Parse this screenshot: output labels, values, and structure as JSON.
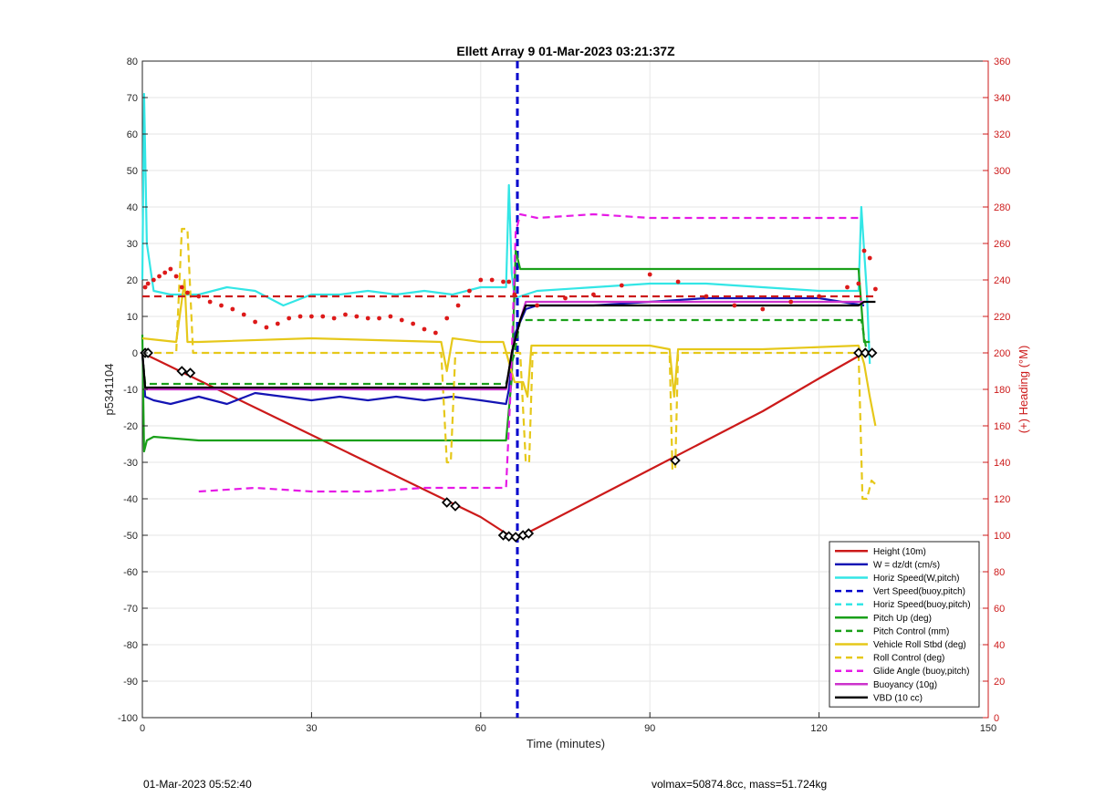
{
  "chart_data": {
    "type": "line",
    "title": "Ellett Array 9 01-Mar-2023 03:21:37Z",
    "xlabel": "Time (minutes)",
    "ylabel": "p5341104",
    "y2label": "(+) Heading (°M)",
    "xlim": [
      0,
      150
    ],
    "ylim": [
      -100,
      80
    ],
    "y2lim": [
      0,
      360
    ],
    "xticks": [
      "0",
      "30",
      "60",
      "90",
      "120",
      "150"
    ],
    "yticks": [
      "80",
      "70",
      "60",
      "50",
      "40",
      "30",
      "20",
      "10",
      "0",
      "-10",
      "-20",
      "-30",
      "-40",
      "-50",
      "-60",
      "-70",
      "-80",
      "-90",
      "-100"
    ],
    "y2ticks": [
      "360",
      "340",
      "320",
      "300",
      "280",
      "260",
      "240",
      "220",
      "200",
      "180",
      "160",
      "140",
      "120",
      "100",
      "80",
      "60",
      "40",
      "20",
      "0"
    ],
    "grid": true,
    "legend_position": "bottom-right",
    "colors": {
      "height": "#cc1a1a",
      "w": "#1414b4",
      "horiz": "#33e6e6",
      "vert_dashed": "#0000cc",
      "pitch": "#1aa01a",
      "roll": "#e6c81a",
      "glide": "#e61ae6",
      "buoy": "#cc33cc",
      "vbd": "#000000",
      "heading": "#dd1a1a"
    },
    "series": [
      {
        "name": "Height (10m)",
        "axis": "left",
        "style": "solid",
        "color": "#cc1a1a",
        "x": [
          0,
          10,
          20,
          30,
          40,
          50,
          60,
          65,
          67,
          70,
          80,
          90,
          100,
          110,
          120,
          128
        ],
        "y": [
          0,
          -7.5,
          -15,
          -22.5,
          -30,
          -37.5,
          -45,
          -50,
          -50.3,
          -48,
          -40,
          -32,
          -24,
          -16,
          -7,
          0
        ]
      },
      {
        "name": "W = dz/dt (cm/s)",
        "axis": "left",
        "style": "solid",
        "color": "#1414b4",
        "x": [
          0,
          0.5,
          2,
          5,
          10,
          15,
          20,
          25,
          30,
          35,
          40,
          45,
          50,
          55,
          60,
          64.5,
          65,
          66,
          68,
          70,
          80,
          90,
          100,
          110,
          120,
          128
        ],
        "y": [
          0,
          -12,
          -13,
          -14,
          -12,
          -14,
          -11,
          -12,
          -13,
          -12,
          -13,
          -12,
          -13,
          -12,
          -13,
          -14,
          -10,
          5,
          12,
          13,
          13,
          14,
          15,
          15,
          15,
          13
        ]
      },
      {
        "name": "Horiz Speed(W,pitch)",
        "axis": "left",
        "style": "solid",
        "color": "#33e6e6",
        "x": [
          0,
          0.3,
          0.8,
          2,
          5,
          10,
          15,
          20,
          25,
          30,
          35,
          40,
          45,
          50,
          55,
          60,
          64.5,
          65,
          65.5,
          66,
          68,
          70,
          80,
          90,
          100,
          110,
          120,
          127,
          127.5,
          128.5,
          129
        ],
        "y": [
          20,
          71,
          30,
          17,
          16,
          16,
          18,
          17,
          13,
          16,
          16,
          17,
          16,
          17,
          16,
          18,
          18,
          46,
          22,
          15,
          16,
          17,
          18,
          19,
          19,
          18,
          17,
          17,
          40,
          16,
          -3
        ]
      },
      {
        "name": "Vert Speed(buoy,pitch)",
        "axis": "left",
        "style": "dashed",
        "color": "#0000cc",
        "x": [
          66.5,
          66.5
        ],
        "y": [
          80,
          -100
        ]
      },
      {
        "name": "Horiz Speed(buoy,pitch)",
        "axis": "left",
        "style": "dashed",
        "color": "#33e6e6",
        "x": [],
        "y": []
      },
      {
        "name": "Pitch Up (deg)",
        "axis": "left",
        "style": "solid",
        "color": "#1aa01a",
        "x": [
          0,
          0.3,
          0.8,
          2,
          10,
          20,
          30,
          40,
          50,
          60,
          64.5,
          65.5,
          66.2,
          67,
          70,
          80,
          90,
          100,
          110,
          120,
          127,
          128,
          129
        ],
        "y": [
          5,
          -27,
          -24,
          -23,
          -24,
          -24,
          -24,
          -24,
          -24,
          -24,
          -24,
          -7,
          28,
          23,
          23,
          23,
          23,
          23,
          23,
          23,
          23,
          3,
          3
        ]
      },
      {
        "name": "Pitch Control (mm)",
        "axis": "left",
        "style": "dashed",
        "color": "#1aa01a",
        "x": [
          0,
          0.5,
          64.5,
          66,
          67,
          127.5,
          128.5
        ],
        "y": [
          0,
          -8.5,
          -8.5,
          0,
          9,
          9,
          0
        ]
      },
      {
        "name": "Vehicle Roll Stbd (deg)",
        "axis": "left",
        "style": "solid",
        "color": "#e6c81a",
        "x": [
          0,
          6,
          7.5,
          8,
          10,
          30,
          53,
          54,
          55,
          60,
          64,
          66,
          67.5,
          68.3,
          69,
          70,
          90,
          93.5,
          94.3,
          95,
          110,
          127,
          128,
          129,
          130
        ],
        "y": [
          4,
          3,
          20,
          3,
          3,
          4,
          3,
          -5,
          4,
          3,
          3,
          -8,
          -8,
          -12,
          2,
          2,
          2,
          1,
          -12,
          1,
          1,
          2,
          -3,
          -12,
          -20
        ]
      },
      {
        "name": "Roll Control (deg)",
        "axis": "left",
        "style": "dashed",
        "color": "#e6c81a",
        "x": [
          0,
          6,
          7,
          8,
          9,
          53,
          54,
          54.7,
          55.5,
          64,
          67,
          68,
          68.6,
          69.2,
          70,
          93.5,
          94,
          94.5,
          95,
          127,
          127.7,
          128.5,
          129.3,
          130
        ],
        "y": [
          0,
          0,
          34,
          34,
          0,
          0,
          -30,
          -30,
          0,
          0,
          0,
          -30,
          -30,
          0,
          0,
          0,
          -32,
          -32,
          0,
          0,
          -40,
          -40,
          -35,
          -36
        ]
      },
      {
        "name": "Glide Angle (buoy,pitch)",
        "axis": "left",
        "style": "dashed",
        "color": "#e61ae6",
        "x": [
          10,
          20,
          30,
          40,
          50,
          60,
          64.5,
          65.3,
          66.2,
          67,
          70,
          80,
          90,
          100,
          110,
          120,
          127
        ],
        "y": [
          -38,
          -37,
          -38,
          -38,
          -37,
          -37,
          -37,
          -10,
          33,
          38,
          37,
          38,
          37,
          37,
          37,
          37,
          37
        ]
      },
      {
        "name": "Buoyancy (10g)",
        "axis": "left",
        "style": "solid",
        "color": "#cc33cc",
        "x": [
          0,
          0.5,
          64.5,
          65.5,
          67,
          68,
          70,
          127,
          128
        ],
        "y": [
          0,
          -10,
          -10,
          0,
          9,
          14,
          14,
          14,
          14
        ]
      },
      {
        "name": "VBD (10 cc)",
        "axis": "left",
        "style": "solid",
        "color": "#000000",
        "x": [
          0,
          0.5,
          64.5,
          65.5,
          67,
          68,
          70,
          127,
          128,
          130
        ],
        "y": [
          0,
          -9.5,
          -9.5,
          0,
          9,
          13,
          13,
          13,
          14,
          14
        ]
      },
      {
        "name": "Heading",
        "axis": "right",
        "style": "markers",
        "color": "#dd1a1a",
        "x": [
          0.5,
          1,
          2,
          3,
          4,
          5,
          6,
          7,
          8,
          10,
          12,
          14,
          16,
          18,
          20,
          22,
          24,
          26,
          28,
          30,
          32,
          34,
          36,
          38,
          40,
          42,
          44,
          46,
          48,
          50,
          52,
          54,
          56,
          58,
          60,
          62,
          64,
          65,
          66,
          70,
          75,
          80,
          85,
          90,
          95,
          100,
          105,
          110,
          115,
          120,
          125,
          127,
          128,
          129,
          130
        ],
        "y": [
          236,
          238,
          240,
          242,
          244,
          246,
          242,
          236,
          233,
          231,
          228,
          226,
          224,
          221,
          217,
          214,
          216,
          219,
          220,
          220,
          220,
          219,
          221,
          220,
          219,
          219,
          220,
          218,
          216,
          213,
          211,
          219,
          226,
          234,
          240,
          240,
          239,
          239,
          232,
          226,
          230,
          232,
          237,
          243,
          239,
          231,
          226,
          224,
          228,
          231,
          236,
          238,
          256,
          252,
          235
        ]
      },
      {
        "name": "Heading mean",
        "axis": "right",
        "style": "dashed",
        "color": "#cc1a1a",
        "x": [
          0,
          130
        ],
        "y": [
          231,
          231
        ]
      }
    ],
    "markers": {
      "color": "#000000",
      "x": [
        0.5,
        1,
        7,
        8.5,
        54,
        55.5,
        64,
        65,
        66.2,
        67.5,
        68.5,
        94.5,
        127,
        128.2,
        129.4
      ],
      "y": [
        0,
        0,
        -5,
        -5.5,
        -41,
        -42,
        -50,
        -50.3,
        -50.5,
        -50,
        -49.5,
        -29.5,
        0,
        0,
        0
      ]
    }
  },
  "legend": [
    {
      "label": "Height (10m)",
      "color": "#cc1a1a",
      "style": "solid"
    },
    {
      "label": "W = dz/dt (cm/s)",
      "color": "#1414b4",
      "style": "solid"
    },
    {
      "label": "Horiz Speed(W,pitch)",
      "color": "#33e6e6",
      "style": "solid"
    },
    {
      "label": "Vert Speed(buoy,pitch)",
      "color": "#0000cc",
      "style": "dashed"
    },
    {
      "label": "Horiz Speed(buoy,pitch)",
      "color": "#33e6e6",
      "style": "dashed"
    },
    {
      "label": "Pitch Up (deg)",
      "color": "#1aa01a",
      "style": "solid"
    },
    {
      "label": "Pitch Control (mm)",
      "color": "#1aa01a",
      "style": "dashed"
    },
    {
      "label": "Vehicle Roll Stbd (deg)",
      "color": "#e6c81a",
      "style": "solid"
    },
    {
      "label": "Roll Control (deg)",
      "color": "#e6c81a",
      "style": "dashed"
    },
    {
      "label": "Glide Angle (buoy,pitch)",
      "color": "#e61ae6",
      "style": "dashed"
    },
    {
      "label": "Buoyancy (10g)",
      "color": "#cc33cc",
      "style": "solid"
    },
    {
      "label": "VBD (10 cc)",
      "color": "#000000",
      "style": "solid"
    }
  ],
  "footer": {
    "left": "01-Mar-2023 05:52:40",
    "right": "volmax=50874.8cc, mass=51.724kg"
  }
}
